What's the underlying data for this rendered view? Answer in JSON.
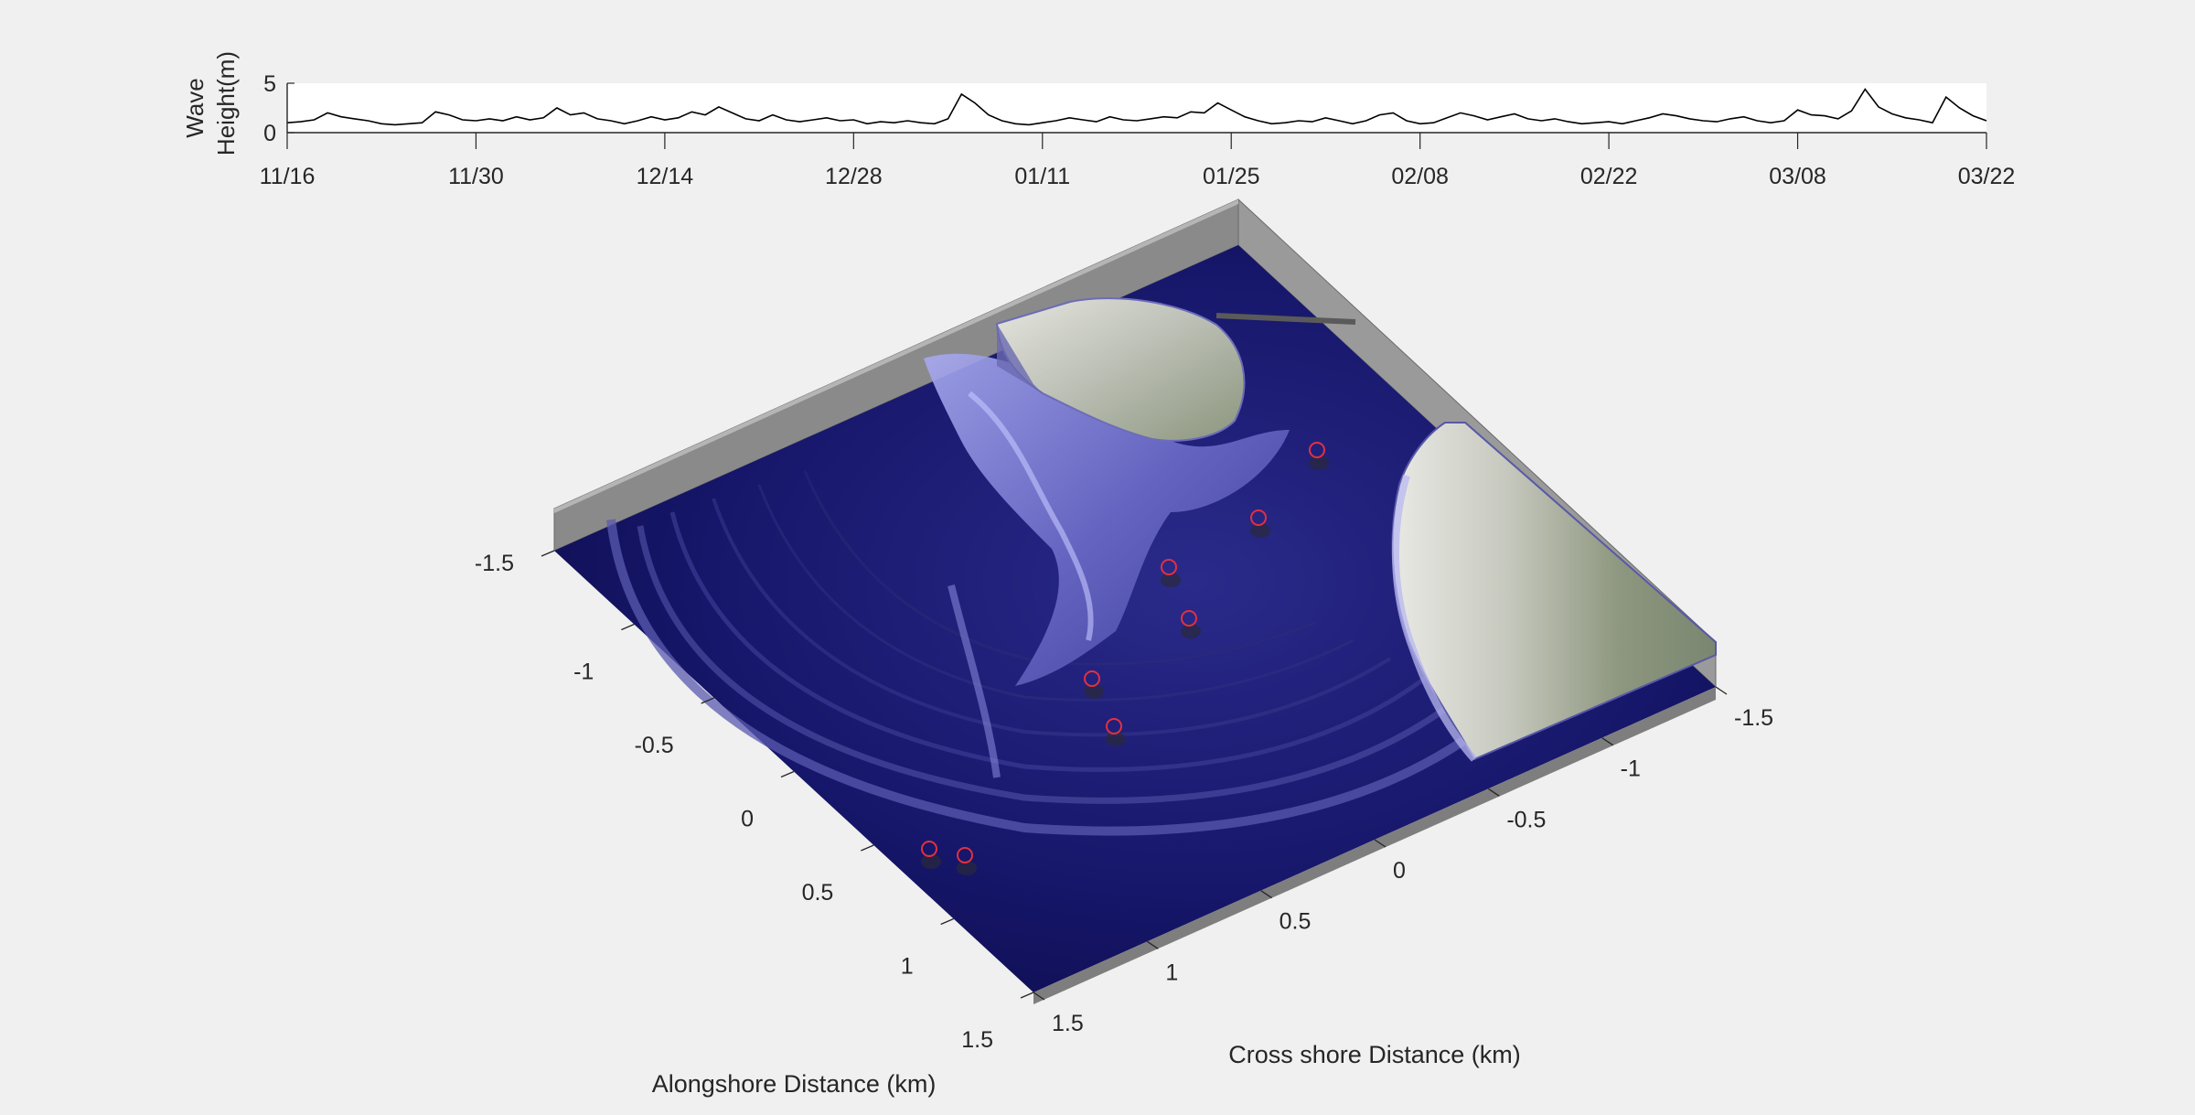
{
  "chart_data": [
    {
      "type": "line",
      "title": "",
      "xlabel": "",
      "ylabel": [
        "Wave",
        "Height(m)"
      ],
      "ylim": [
        0,
        5
      ],
      "yticks": [
        "0",
        "5"
      ],
      "xlim_days": [
        0,
        126
      ],
      "x_ticks": [
        {
          "label": "11/16",
          "day": 0
        },
        {
          "label": "11/30",
          "day": 14
        },
        {
          "label": "12/14",
          "day": 28
        },
        {
          "label": "12/28",
          "day": 42
        },
        {
          "label": "01/11",
          "day": 56
        },
        {
          "label": "01/25",
          "day": 70
        },
        {
          "label": "02/08",
          "day": 84
        },
        {
          "label": "02/22",
          "day": 98
        },
        {
          "label": "03/08",
          "day": 112
        },
        {
          "label": "03/22",
          "day": 126
        }
      ],
      "series": [
        {
          "color": "#000000",
          "points": [
            [
              0,
              1.0
            ],
            [
              1,
              1.1
            ],
            [
              2,
              1.3
            ],
            [
              3,
              2.0
            ],
            [
              4,
              1.6
            ],
            [
              5,
              1.4
            ],
            [
              6,
              1.2
            ],
            [
              7,
              0.9
            ],
            [
              8,
              0.8
            ],
            [
              9,
              0.9
            ],
            [
              10,
              1.0
            ],
            [
              11,
              2.1
            ],
            [
              12,
              1.8
            ],
            [
              13,
              1.3
            ],
            [
              14,
              1.2
            ],
            [
              15,
              1.4
            ],
            [
              16,
              1.2
            ],
            [
              17,
              1.6
            ],
            [
              18,
              1.3
            ],
            [
              19,
              1.5
            ],
            [
              20,
              2.5
            ],
            [
              21,
              1.8
            ],
            [
              22,
              2.0
            ],
            [
              23,
              1.4
            ],
            [
              24,
              1.2
            ],
            [
              25,
              0.9
            ],
            [
              26,
              1.2
            ],
            [
              27,
              1.6
            ],
            [
              28,
              1.3
            ],
            [
              29,
              1.5
            ],
            [
              30,
              2.1
            ],
            [
              31,
              1.8
            ],
            [
              32,
              2.6
            ],
            [
              33,
              2.0
            ],
            [
              34,
              1.4
            ],
            [
              35,
              1.2
            ],
            [
              36,
              1.8
            ],
            [
              37,
              1.3
            ],
            [
              38,
              1.1
            ],
            [
              39,
              1.3
            ],
            [
              40,
              1.5
            ],
            [
              41,
              1.2
            ],
            [
              42,
              1.3
            ],
            [
              43,
              0.9
            ],
            [
              44,
              1.1
            ],
            [
              45,
              1.0
            ],
            [
              46,
              1.2
            ],
            [
              47,
              1.0
            ],
            [
              48,
              0.9
            ],
            [
              49,
              1.4
            ],
            [
              50,
              3.9
            ],
            [
              51,
              3.0
            ],
            [
              52,
              1.8
            ],
            [
              53,
              1.2
            ],
            [
              54,
              0.9
            ],
            [
              55,
              0.8
            ],
            [
              56,
              1.0
            ],
            [
              57,
              1.2
            ],
            [
              58,
              1.5
            ],
            [
              59,
              1.3
            ],
            [
              60,
              1.1
            ],
            [
              61,
              1.6
            ],
            [
              62,
              1.3
            ],
            [
              63,
              1.2
            ],
            [
              64,
              1.4
            ],
            [
              65,
              1.6
            ],
            [
              66,
              1.5
            ],
            [
              67,
              2.1
            ],
            [
              68,
              2.0
            ],
            [
              69,
              3.0
            ],
            [
              70,
              2.3
            ],
            [
              71,
              1.6
            ],
            [
              72,
              1.2
            ],
            [
              73,
              0.9
            ],
            [
              74,
              1.0
            ],
            [
              75,
              1.2
            ],
            [
              76,
              1.1
            ],
            [
              77,
              1.5
            ],
            [
              78,
              1.2
            ],
            [
              79,
              0.9
            ],
            [
              80,
              1.2
            ],
            [
              81,
              1.8
            ],
            [
              82,
              2.0
            ],
            [
              83,
              1.2
            ],
            [
              84,
              0.9
            ],
            [
              85,
              1.0
            ],
            [
              86,
              1.5
            ],
            [
              87,
              2.0
            ],
            [
              88,
              1.7
            ],
            [
              89,
              1.3
            ],
            [
              90,
              1.6
            ],
            [
              91,
              1.9
            ],
            [
              92,
              1.4
            ],
            [
              93,
              1.2
            ],
            [
              94,
              1.4
            ],
            [
              95,
              1.1
            ],
            [
              96,
              0.9
            ],
            [
              97,
              1.0
            ],
            [
              98,
              1.1
            ],
            [
              99,
              0.9
            ],
            [
              100,
              1.2
            ],
            [
              101,
              1.5
            ],
            [
              102,
              1.9
            ],
            [
              103,
              1.7
            ],
            [
              104,
              1.4
            ],
            [
              105,
              1.2
            ],
            [
              106,
              1.1
            ],
            [
              107,
              1.4
            ],
            [
              108,
              1.6
            ],
            [
              109,
              1.2
            ],
            [
              110,
              1.0
            ],
            [
              111,
              1.2
            ],
            [
              112,
              2.3
            ],
            [
              113,
              1.8
            ],
            [
              114,
              1.7
            ],
            [
              115,
              1.4
            ],
            [
              116,
              2.2
            ],
            [
              117,
              4.4
            ],
            [
              118,
              2.6
            ],
            [
              119,
              1.9
            ],
            [
              120,
              1.5
            ],
            [
              121,
              1.3
            ],
            [
              122,
              1.0
            ],
            [
              123,
              3.6
            ],
            [
              124,
              2.5
            ],
            [
              125,
              1.7
            ],
            [
              126,
              1.2
            ]
          ]
        }
      ]
    },
    {
      "type": "surface3d",
      "title": "",
      "xlabel": "Alongshore Distance (km)",
      "ylabel": "Cross shore Distance (km)",
      "alongshore_ticks": [
        "-1.5",
        "-1",
        "-0.5",
        "0",
        "0.5",
        "1",
        "1.5"
      ],
      "crossshore_ticks": [
        "-1.5",
        "-1",
        "-0.5",
        "0",
        "0.5",
        "1",
        "1.5"
      ],
      "xlim": [
        -1.5,
        1.5
      ],
      "ylim": [
        -1.5,
        1.5
      ],
      "water_color": "#10104f",
      "box_color": "#8a8a8a",
      "marker_color": "#e23040",
      "marker_count": 8
    }
  ]
}
